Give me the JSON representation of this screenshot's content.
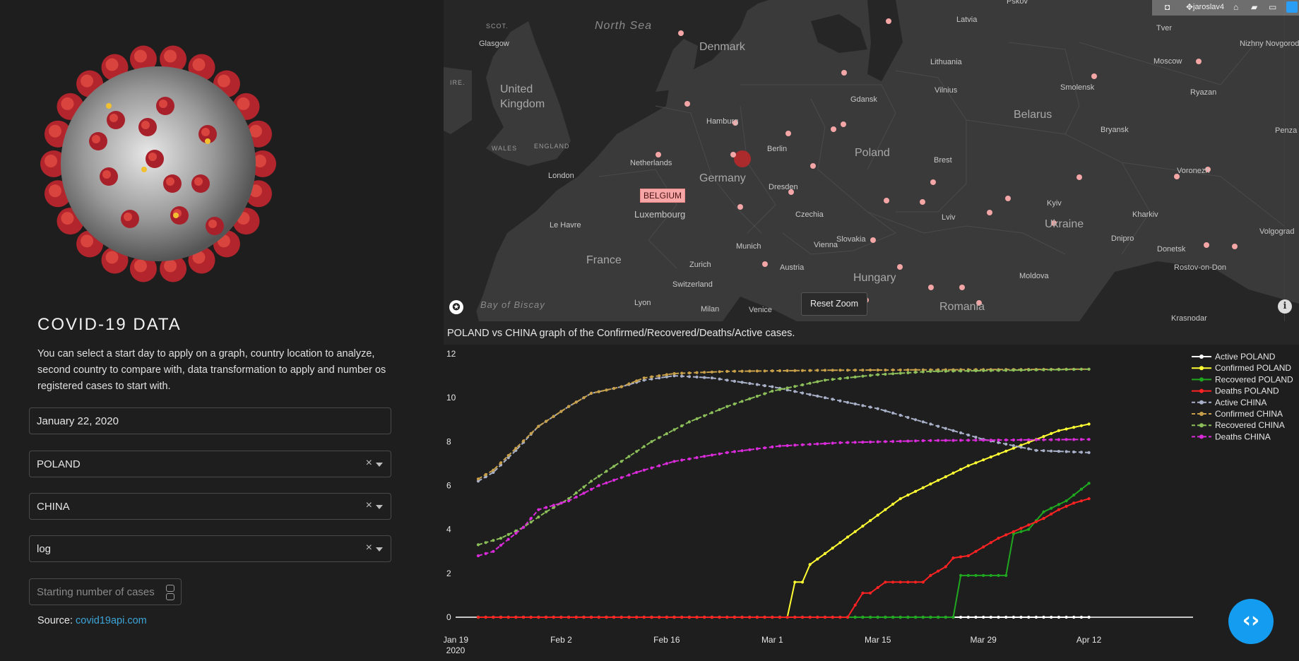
{
  "sidebar": {
    "title": "COVID-19 DATA",
    "description": "You can select a start day to apply on a graph, country location to analyze, second country to compare with, data transformation to apply and number os registered cases to start with.",
    "date_value": "January 22, 2020",
    "country1": "POLAND",
    "country2": "CHINA",
    "transform": "log",
    "cases_placeholder": "Starting number of cases",
    "source_label": "Source: ",
    "source_link": "covid19api.com",
    "clear_glyph": "×"
  },
  "map": {
    "reset_zoom": "Reset Zoom",
    "tooltip": "BELGIUM",
    "modebar_user": "jaroslav4",
    "highlight_color": "#c0282a",
    "marker_color": "#f4a6a6",
    "countries": [
      "Denmark",
      "United Kingdom",
      "Germany",
      "Poland",
      "France",
      "Belarus",
      "Ukraine",
      "Hungary",
      "Romania",
      "Lithuania",
      "Latvia",
      "Czechia",
      "Slovakia",
      "Austria",
      "Switzerland",
      "Luxembourg",
      "Netherlands",
      "Moldova"
    ],
    "cities": [
      "Glasgow",
      "London",
      "Le Havre",
      "Hamburg",
      "Berlin",
      "Gdansk",
      "Dresden",
      "Munich",
      "Vienna",
      "Zurich",
      "Milan",
      "Venice",
      "Lyon",
      "Brest",
      "Vilnius",
      "Smolensk",
      "Moscow",
      "Tver",
      "Ryazan",
      "Bryansk",
      "Kyiv",
      "Lviv",
      "Kharkiv",
      "Dnipro",
      "Donetsk",
      "Voronezh",
      "Volgograd",
      "Rostov-on-Don",
      "Krasnodar",
      "Nizhny Novgorod",
      "Penza",
      "Pskov"
    ],
    "seas": [
      "North Sea",
      "Bay of Biscay"
    ],
    "regions": [
      "SCOT.",
      "WALES",
      "ENGLAND",
      "IRE."
    ]
  },
  "chart": {
    "title": "POLAND vs CHINA graph of the Confirmed/Recovered/Deaths/Active cases."
  },
  "chart_data": {
    "type": "line",
    "x_start": "2020-01-22",
    "x_end": "2020-04-12",
    "x_ticks": [
      {
        "label": "Jan 19",
        "sub": "2020",
        "date": "2020-01-19"
      },
      {
        "label": "Feb 2",
        "sub": "",
        "date": "2020-02-02"
      },
      {
        "label": "Feb 16",
        "sub": "",
        "date": "2020-02-16"
      },
      {
        "label": "Mar 1",
        "sub": "",
        "date": "2020-03-01"
      },
      {
        "label": "Mar 15",
        "sub": "",
        "date": "2020-03-15"
      },
      {
        "label": "Mar 29",
        "sub": "",
        "date": "2020-03-29"
      },
      {
        "label": "Apr 12",
        "sub": "",
        "date": "2020-04-12"
      }
    ],
    "y_ticks": [
      0,
      2,
      4,
      6,
      8,
      10,
      12
    ],
    "ylim": [
      0,
      12
    ],
    "xlim": [
      "2020-01-19",
      "2020-04-23"
    ],
    "legend_position": "right",
    "series": [
      {
        "name": "Active POLAND",
        "color": "#ffffff",
        "dash": "solid",
        "points": [
          [
            "2020-01-22",
            0
          ],
          [
            "2020-04-12",
            0
          ]
        ]
      },
      {
        "name": "Confirmed POLAND",
        "color": "#ffff33",
        "dash": "solid",
        "points": [
          [
            "2020-01-22",
            0
          ],
          [
            "2020-03-03",
            0
          ],
          [
            "2020-03-04",
            1.6
          ],
          [
            "2020-03-05",
            1.6
          ],
          [
            "2020-03-06",
            2.4
          ],
          [
            "2020-03-08",
            2.9
          ],
          [
            "2020-03-10",
            3.4
          ],
          [
            "2020-03-12",
            3.9
          ],
          [
            "2020-03-14",
            4.4
          ],
          [
            "2020-03-16",
            4.9
          ],
          [
            "2020-03-18",
            5.4
          ],
          [
            "2020-03-21",
            5.9
          ],
          [
            "2020-03-24",
            6.4
          ],
          [
            "2020-03-27",
            6.9
          ],
          [
            "2020-03-30",
            7.3
          ],
          [
            "2020-04-02",
            7.7
          ],
          [
            "2020-04-05",
            8.1
          ],
          [
            "2020-04-08",
            8.5
          ],
          [
            "2020-04-12",
            8.8
          ]
        ]
      },
      {
        "name": "Recovered POLAND",
        "color": "#1fa81f",
        "dash": "solid",
        "points": [
          [
            "2020-01-22",
            0
          ],
          [
            "2020-03-13",
            0
          ],
          [
            "2020-03-25",
            0
          ],
          [
            "2020-03-26",
            1.9
          ],
          [
            "2020-04-01",
            1.9
          ],
          [
            "2020-04-02",
            3.8
          ],
          [
            "2020-04-04",
            4.0
          ],
          [
            "2020-04-06",
            4.8
          ],
          [
            "2020-04-09",
            5.3
          ],
          [
            "2020-04-12",
            6.1
          ]
        ]
      },
      {
        "name": "Deaths POLAND",
        "color": "#ff2222",
        "dash": "solid",
        "points": [
          [
            "2020-01-22",
            0
          ],
          [
            "2020-03-11",
            0
          ],
          [
            "2020-03-13",
            1.1
          ],
          [
            "2020-03-14",
            1.1
          ],
          [
            "2020-03-16",
            1.6
          ],
          [
            "2020-03-21",
            1.6
          ],
          [
            "2020-03-22",
            1.9
          ],
          [
            "2020-03-24",
            2.3
          ],
          [
            "2020-03-25",
            2.7
          ],
          [
            "2020-03-27",
            2.8
          ],
          [
            "2020-03-29",
            3.2
          ],
          [
            "2020-03-31",
            3.6
          ],
          [
            "2020-04-02",
            3.9
          ],
          [
            "2020-04-04",
            4.2
          ],
          [
            "2020-04-06",
            4.5
          ],
          [
            "2020-04-08",
            4.9
          ],
          [
            "2020-04-10",
            5.2
          ],
          [
            "2020-04-12",
            5.4
          ]
        ]
      },
      {
        "name": "Active CHINA",
        "color": "#a8b0c8",
        "dash": "dash",
        "points": [
          [
            "2020-01-22",
            6.2
          ],
          [
            "2020-01-24",
            6.6
          ],
          [
            "2020-01-27",
            7.6
          ],
          [
            "2020-01-30",
            8.7
          ],
          [
            "2020-02-03",
            9.6
          ],
          [
            "2020-02-06",
            10.2
          ],
          [
            "2020-02-10",
            10.5
          ],
          [
            "2020-02-13",
            10.8
          ],
          [
            "2020-02-17",
            11.0
          ],
          [
            "2020-02-22",
            10.9
          ],
          [
            "2020-03-01",
            10.5
          ],
          [
            "2020-03-08",
            10.0
          ],
          [
            "2020-03-15",
            9.5
          ],
          [
            "2020-03-22",
            8.8
          ],
          [
            "2020-03-29",
            8.1
          ],
          [
            "2020-04-05",
            7.6
          ],
          [
            "2020-04-12",
            7.5
          ]
        ]
      },
      {
        "name": "Confirmed CHINA",
        "color": "#c8a04a",
        "dash": "dash",
        "points": [
          [
            "2020-01-22",
            6.3
          ],
          [
            "2020-01-24",
            6.7
          ],
          [
            "2020-01-27",
            7.7
          ],
          [
            "2020-01-30",
            8.7
          ],
          [
            "2020-02-03",
            9.6
          ],
          [
            "2020-02-06",
            10.2
          ],
          [
            "2020-02-10",
            10.5
          ],
          [
            "2020-02-13",
            10.9
          ],
          [
            "2020-02-17",
            11.1
          ],
          [
            "2020-02-24",
            11.2
          ],
          [
            "2020-03-08",
            11.25
          ],
          [
            "2020-04-12",
            11.3
          ]
        ]
      },
      {
        "name": "Recovered CHINA",
        "color": "#8cbf5a",
        "dash": "dash",
        "points": [
          [
            "2020-01-22",
            3.3
          ],
          [
            "2020-01-25",
            3.6
          ],
          [
            "2020-01-28",
            4.1
          ],
          [
            "2020-01-31",
            4.8
          ],
          [
            "2020-02-03",
            5.4
          ],
          [
            "2020-02-06",
            6.2
          ],
          [
            "2020-02-10",
            7.1
          ],
          [
            "2020-02-14",
            8.0
          ],
          [
            "2020-02-19",
            8.9
          ],
          [
            "2020-02-24",
            9.6
          ],
          [
            "2020-03-01",
            10.3
          ],
          [
            "2020-03-08",
            10.8
          ],
          [
            "2020-03-15",
            11.05
          ],
          [
            "2020-03-22",
            11.2
          ],
          [
            "2020-04-12",
            11.3
          ]
        ]
      },
      {
        "name": "Deaths CHINA",
        "color": "#d92bd9",
        "dash": "dash",
        "points": [
          [
            "2020-01-22",
            2.8
          ],
          [
            "2020-01-24",
            3.0
          ],
          [
            "2020-01-28",
            4.1
          ],
          [
            "2020-01-30",
            4.9
          ],
          [
            "2020-02-03",
            5.3
          ],
          [
            "2020-02-07",
            6.0
          ],
          [
            "2020-02-12",
            6.6
          ],
          [
            "2020-02-17",
            7.1
          ],
          [
            "2020-02-24",
            7.5
          ],
          [
            "2020-03-02",
            7.8
          ],
          [
            "2020-03-10",
            7.95
          ],
          [
            "2020-03-22",
            8.05
          ],
          [
            "2020-04-12",
            8.1
          ]
        ]
      }
    ]
  }
}
